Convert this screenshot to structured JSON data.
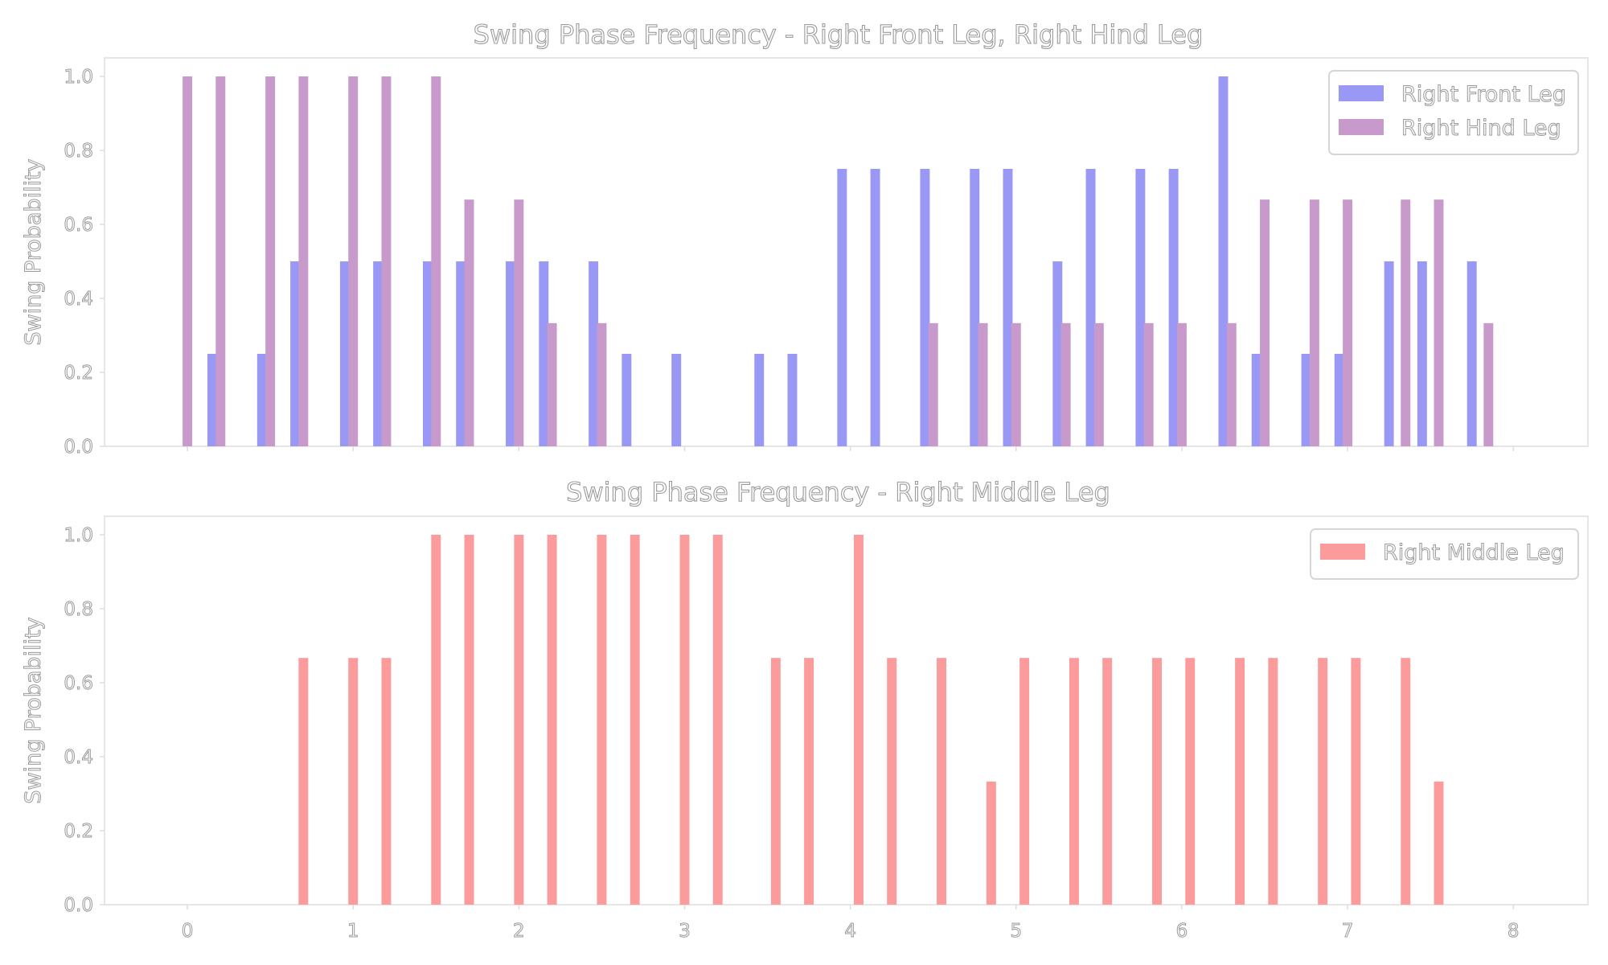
{
  "chart_data": [
    {
      "type": "bar",
      "title": "Swing Phase Frequency - Right Front Leg, Right Hind Leg",
      "xlabel": "",
      "ylabel": "Swing Probability",
      "xlim": [
        -0.5,
        8.45
      ],
      "ylim": [
        0,
        1.05
      ],
      "xticks": [
        0,
        1,
        2,
        3,
        4,
        5,
        6,
        7,
        8
      ],
      "yticks": [
        "0.0",
        "0.2",
        "0.4",
        "0.6",
        "0.8",
        "1.0"
      ],
      "show_xtick_labels": false,
      "bar_width": 0.058,
      "legend_position": "top-right",
      "series": [
        {
          "name": "Right Front Leg",
          "color": "#9999f5",
          "points": [
            [
              0.15,
              0.25
            ],
            [
              0.45,
              0.25
            ],
            [
              0.65,
              0.5
            ],
            [
              0.95,
              0.5
            ],
            [
              1.15,
              0.5
            ],
            [
              1.45,
              0.5
            ],
            [
              1.65,
              0.5
            ],
            [
              1.95,
              0.5
            ],
            [
              2.15,
              0.5
            ],
            [
              2.45,
              0.5
            ],
            [
              2.65,
              0.25
            ],
            [
              2.95,
              0.25
            ],
            [
              3.45,
              0.25
            ],
            [
              3.65,
              0.25
            ],
            [
              3.95,
              0.75
            ],
            [
              4.15,
              0.75
            ],
            [
              4.45,
              0.75
            ],
            [
              4.75,
              0.75
            ],
            [
              4.95,
              0.75
            ],
            [
              5.25,
              0.5
            ],
            [
              5.45,
              0.75
            ],
            [
              5.75,
              0.75
            ],
            [
              5.95,
              0.75
            ],
            [
              6.25,
              1.0
            ],
            [
              6.45,
              0.25
            ],
            [
              6.75,
              0.25
            ],
            [
              6.95,
              0.25
            ],
            [
              7.25,
              0.5
            ],
            [
              7.45,
              0.5
            ],
            [
              7.75,
              0.5
            ]
          ]
        },
        {
          "name": "Right Hind Leg",
          "color": "#c89acc",
          "points": [
            [
              0.0,
              1.0
            ],
            [
              0.2,
              1.0
            ],
            [
              0.5,
              1.0
            ],
            [
              0.7,
              1.0
            ],
            [
              1.0,
              1.0
            ],
            [
              1.2,
              1.0
            ],
            [
              1.5,
              1.0
            ],
            [
              1.7,
              0.667
            ],
            [
              2.0,
              0.667
            ],
            [
              2.2,
              0.333
            ],
            [
              2.5,
              0.333
            ],
            [
              4.5,
              0.333
            ],
            [
              4.8,
              0.333
            ],
            [
              5.0,
              0.333
            ],
            [
              5.3,
              0.333
            ],
            [
              5.5,
              0.333
            ],
            [
              5.8,
              0.333
            ],
            [
              6.0,
              0.333
            ],
            [
              6.3,
              0.333
            ],
            [
              6.5,
              0.667
            ],
            [
              6.8,
              0.667
            ],
            [
              7.0,
              0.667
            ],
            [
              7.35,
              0.667
            ],
            [
              7.55,
              0.667
            ],
            [
              7.85,
              0.333
            ]
          ]
        }
      ]
    },
    {
      "type": "bar",
      "title": "Swing Phase Frequency - Right Middle Leg",
      "xlabel": "",
      "ylabel": "Swing Probability",
      "xlim": [
        -0.5,
        8.45
      ],
      "ylim": [
        0,
        1.05
      ],
      "xticks": [
        0,
        1,
        2,
        3,
        4,
        5,
        6,
        7,
        8
      ],
      "yticks": [
        "0.0",
        "0.2",
        "0.4",
        "0.6",
        "0.8",
        "1.0"
      ],
      "show_xtick_labels": true,
      "bar_width": 0.058,
      "legend_position": "top-right",
      "series": [
        {
          "name": "Right Middle Leg",
          "color": "#fb9b9b",
          "points": [
            [
              0.7,
              0.667
            ],
            [
              1.0,
              0.667
            ],
            [
              1.2,
              0.667
            ],
            [
              1.5,
              1.0
            ],
            [
              1.7,
              1.0
            ],
            [
              2.0,
              1.0
            ],
            [
              2.2,
              1.0
            ],
            [
              2.5,
              1.0
            ],
            [
              2.7,
              1.0
            ],
            [
              3.0,
              1.0
            ],
            [
              3.2,
              1.0
            ],
            [
              3.55,
              0.667
            ],
            [
              3.75,
              0.667
            ],
            [
              4.05,
              1.0
            ],
            [
              4.25,
              0.667
            ],
            [
              4.55,
              0.667
            ],
            [
              4.85,
              0.333
            ],
            [
              5.05,
              0.667
            ],
            [
              5.35,
              0.667
            ],
            [
              5.55,
              0.667
            ],
            [
              5.85,
              0.667
            ],
            [
              6.05,
              0.667
            ],
            [
              6.35,
              0.667
            ],
            [
              6.55,
              0.667
            ],
            [
              6.85,
              0.667
            ],
            [
              7.05,
              0.667
            ],
            [
              7.35,
              0.667
            ],
            [
              7.55,
              0.333
            ]
          ]
        }
      ]
    }
  ]
}
